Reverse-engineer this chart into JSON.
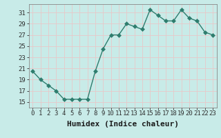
{
  "x": [
    0,
    1,
    2,
    3,
    4,
    5,
    6,
    7,
    8,
    9,
    10,
    11,
    12,
    13,
    14,
    15,
    16,
    17,
    18,
    19,
    20,
    21,
    22,
    23
  ],
  "y": [
    20.5,
    19.0,
    18.0,
    17.0,
    15.5,
    15.5,
    15.5,
    15.5,
    20.5,
    24.5,
    27.0,
    27.0,
    29.0,
    28.5,
    28.0,
    31.5,
    30.5,
    29.5,
    29.5,
    31.5,
    30.0,
    29.5,
    27.5,
    27.0
  ],
  "line_color": "#2e7d6e",
  "marker": ".",
  "marker_color": "#2e7d6e",
  "bg_color": "#c8ebe8",
  "grid_color": "#e8c8c8",
  "xlabel": "Humidex (Indice chaleur)",
  "xlim": [
    -0.5,
    23.5
  ],
  "ylim": [
    14.0,
    32.5
  ],
  "yticks": [
    15,
    17,
    19,
    21,
    23,
    25,
    27,
    29,
    31
  ],
  "xticks": [
    0,
    1,
    2,
    3,
    4,
    5,
    6,
    7,
    8,
    9,
    10,
    11,
    12,
    13,
    14,
    15,
    16,
    17,
    18,
    19,
    20,
    21,
    22,
    23
  ],
  "xtick_labels": [
    "0",
    "1",
    "2",
    "3",
    "4",
    "5",
    "6",
    "7",
    "8",
    "9",
    "10",
    "11",
    "12",
    "13",
    "14",
    "15",
    "16",
    "17",
    "18",
    "19",
    "20",
    "21",
    "22",
    "23"
  ],
  "tick_color": "#2e2e2e",
  "font_color": "#1a1a1a",
  "xlabel_fontsize": 8,
  "tick_fontsize": 6.5,
  "linewidth": 1.0,
  "markersize": 3
}
